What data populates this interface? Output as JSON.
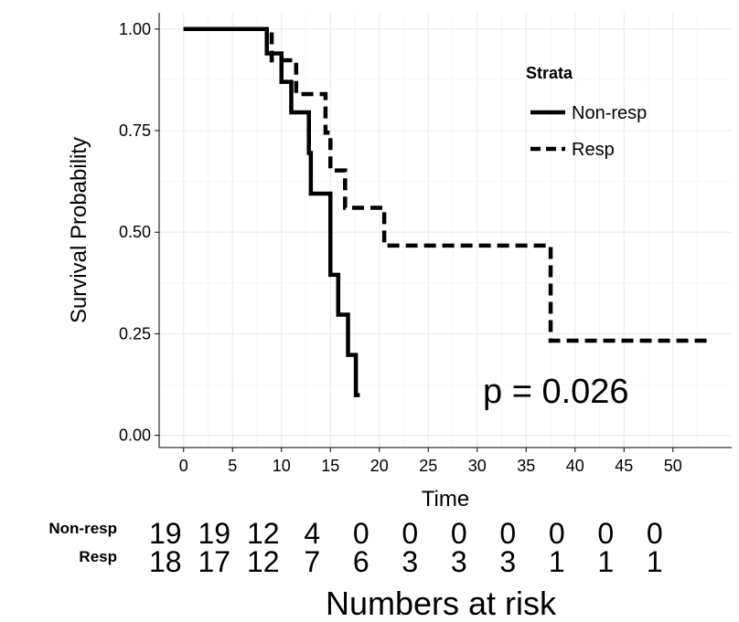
{
  "chart_data": {
    "type": "line",
    "subtype": "kaplan-meier-step",
    "xlabel": "Time",
    "ylabel": "Survival Probability",
    "xlim": [
      -2.5,
      56
    ],
    "ylim": [
      -0.03,
      1.04
    ],
    "x_ticks": [
      0,
      5,
      10,
      15,
      20,
      25,
      30,
      35,
      40,
      45,
      50
    ],
    "y_ticks": [
      0.0,
      0.25,
      0.5,
      0.75,
      1.0
    ],
    "y_tick_labels": [
      "0.00",
      "0.25",
      "0.50",
      "0.75",
      "1.00"
    ],
    "grid": true,
    "legend": {
      "title": "Strata",
      "position": "top-right",
      "entries": [
        {
          "name": "Non-resp",
          "linestyle": "solid"
        },
        {
          "name": "Resp",
          "linestyle": "dashed"
        }
      ]
    },
    "series": [
      {
        "name": "Non-resp",
        "linestyle": "solid",
        "x": [
          0,
          8.5,
          9.5,
          10,
          11,
          12.5,
          12.8,
          13,
          15,
          15.8,
          16.8,
          17.6,
          18
        ],
        "y": [
          1.0,
          0.94,
          0.94,
          0.87,
          0.795,
          0.795,
          0.695,
          0.595,
          0.395,
          0.297,
          0.198,
          0.099,
          0.099
        ]
      },
      {
        "name": "Resp",
        "linestyle": "dashed",
        "x": [
          0,
          9,
          11.5,
          14.5,
          15,
          16.5,
          18.5,
          20.5,
          37.5,
          54
        ],
        "y": [
          1.0,
          0.923,
          0.84,
          0.745,
          0.652,
          0.56,
          0.56,
          0.467,
          0.233,
          0.233
        ]
      }
    ],
    "annotation": "p = 0.026",
    "risk_table": {
      "title": "Numbers at risk",
      "times": [
        0,
        5,
        10,
        15,
        20,
        25,
        30,
        35,
        40,
        45,
        50
      ],
      "rows": [
        {
          "name": "Non-resp",
          "counts": [
            "19",
            "19",
            "12",
            "4",
            "0",
            "0",
            "0",
            "0",
            "0",
            "0",
            "0"
          ]
        },
        {
          "name": "Resp",
          "counts": [
            "18",
            "17",
            "12",
            "7",
            "6",
            "3",
            "3",
            "3",
            "1",
            "1",
            "1"
          ]
        }
      ]
    }
  }
}
